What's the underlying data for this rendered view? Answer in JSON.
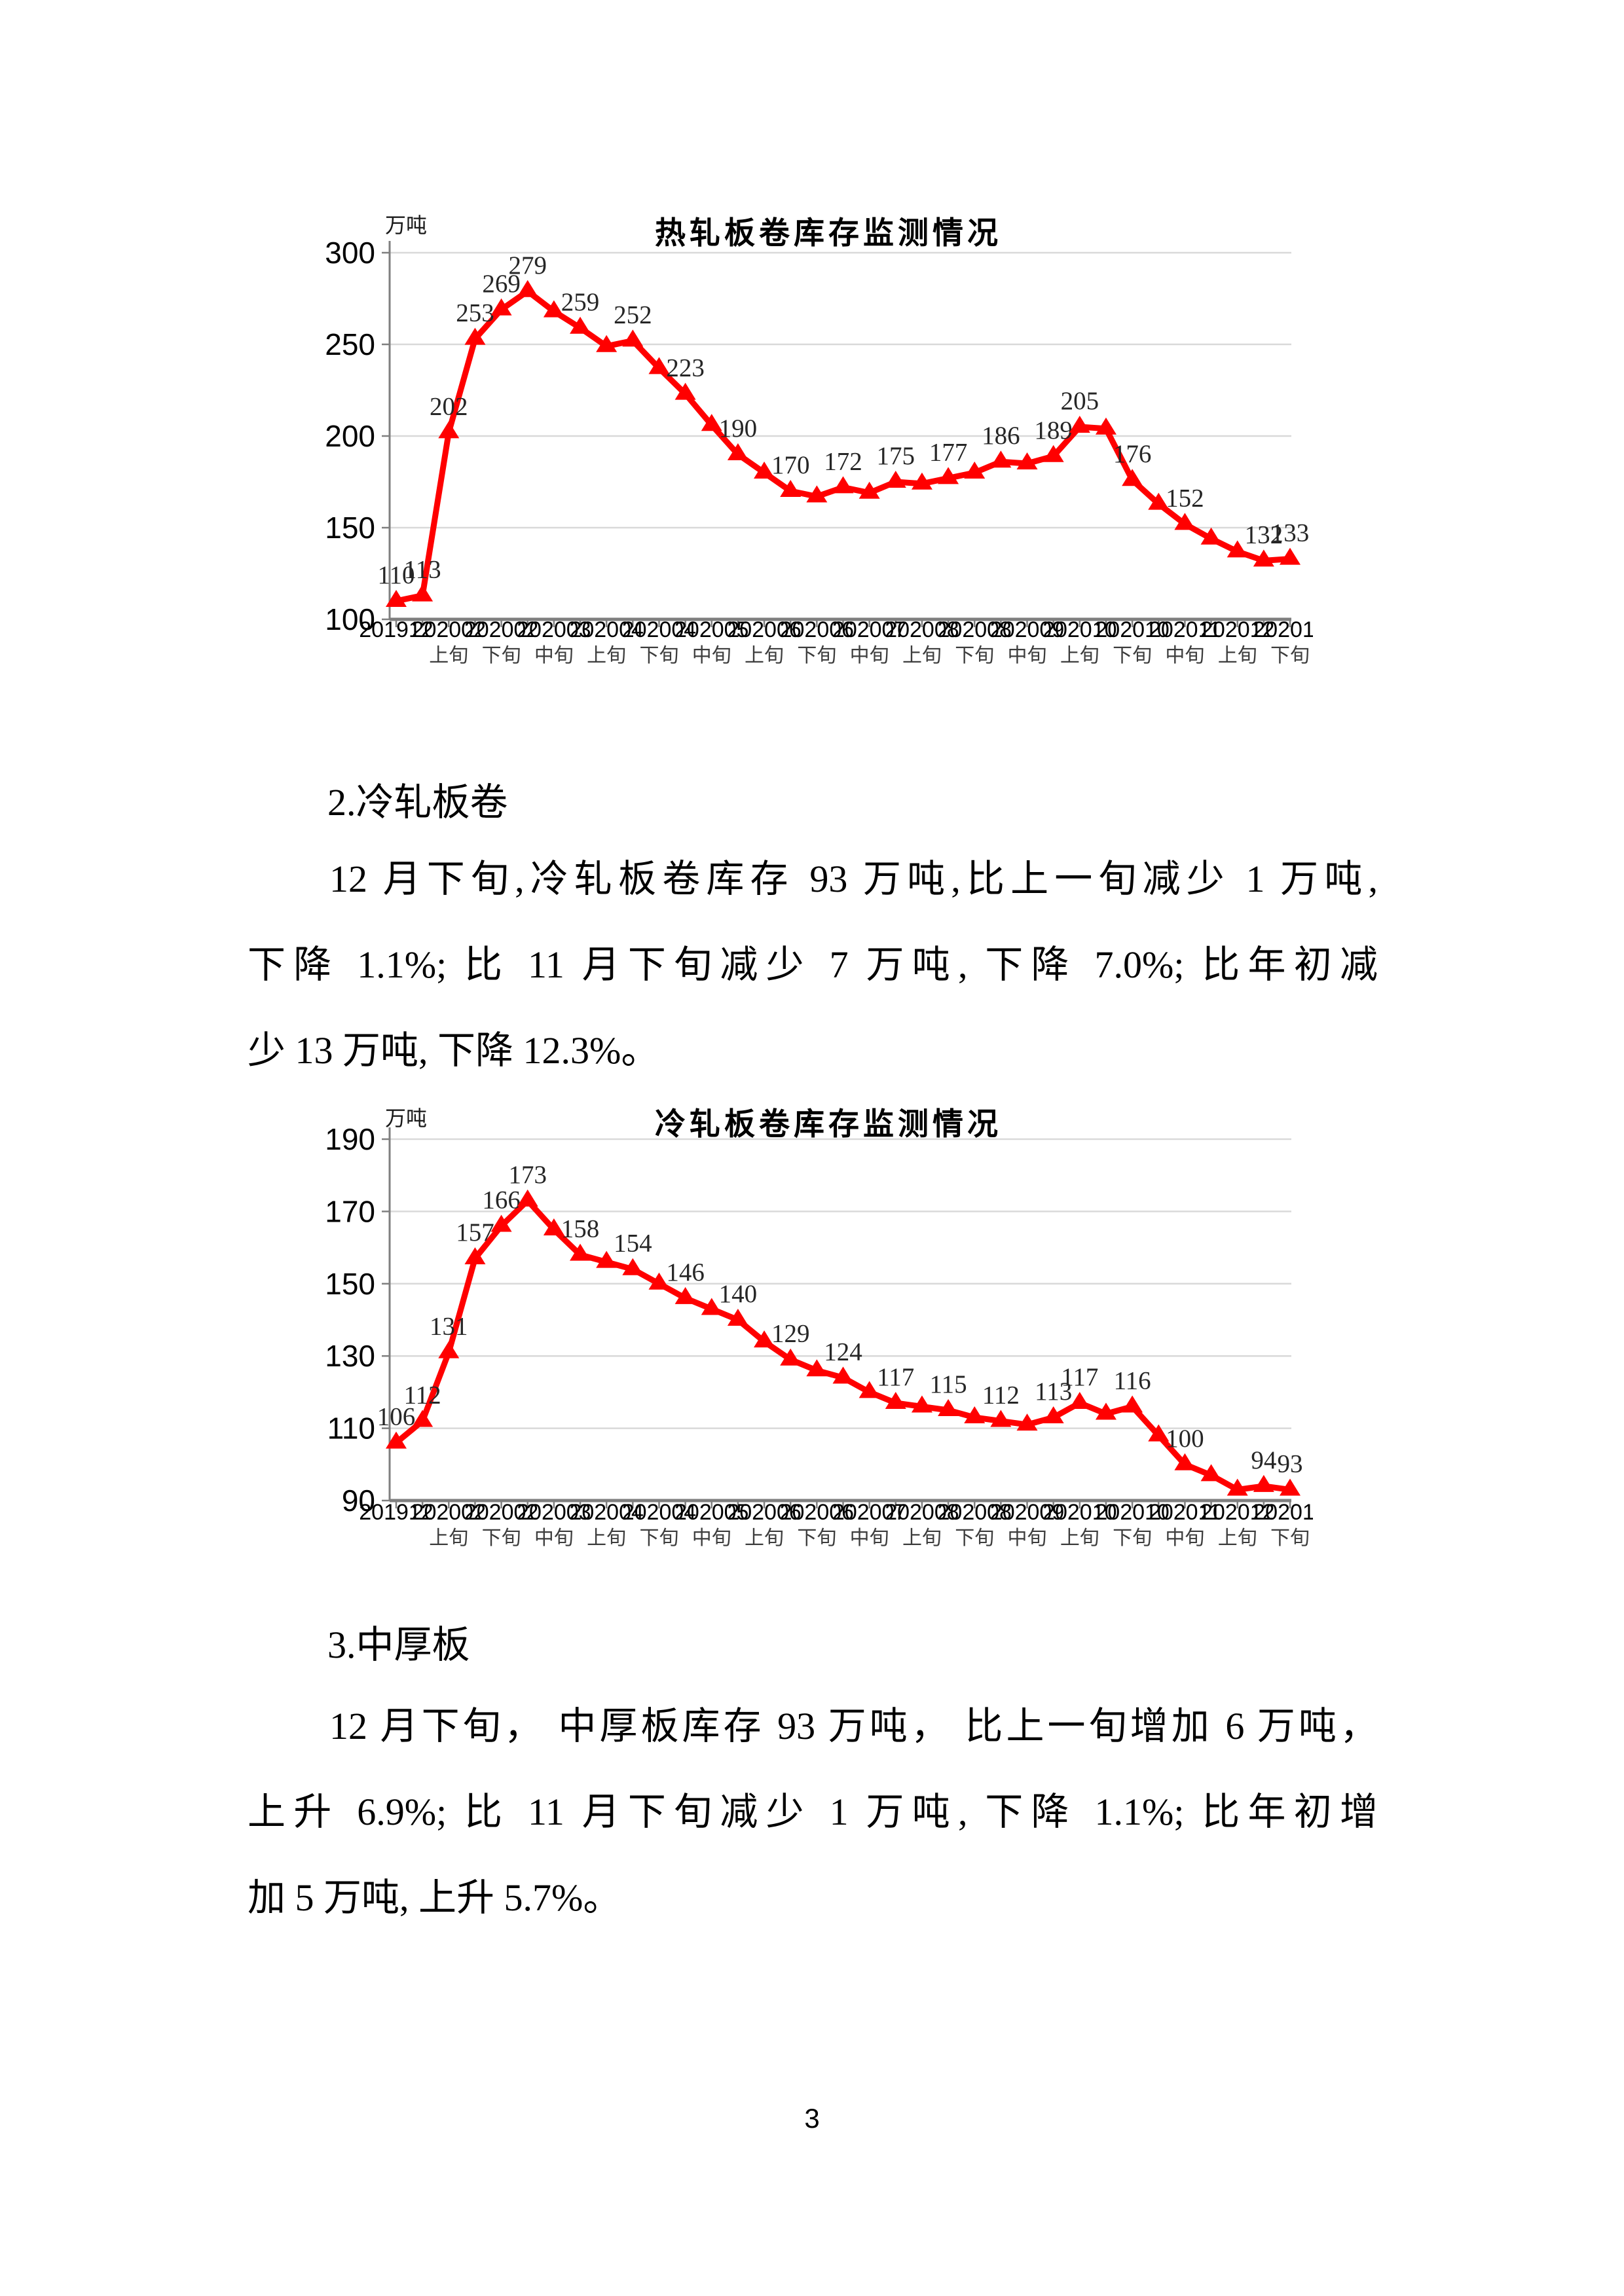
{
  "page": {
    "number": "3"
  },
  "colors": {
    "line_red": "#FF0000",
    "gridline": "#D9D9D9",
    "axis_gray": "#7F7F7F",
    "data_label": "#262626",
    "tick_label": "#000000",
    "sub_tick_label": "#3d3d3d"
  },
  "chart_data": [
    {
      "type": "line",
      "title": "热轧板卷库存监测情况",
      "unit_label": "万吨",
      "series_name": "热轧板卷库存",
      "ylim": [
        100,
        300
      ],
      "y_ticks": [
        300,
        250,
        200,
        150,
        100
      ],
      "grid": "horizontal",
      "legend": "none",
      "x_tick_labels": [
        [
          "201912",
          ""
        ],
        [
          "202002",
          "上旬"
        ],
        [
          "202002",
          "下旬"
        ],
        [
          "202003",
          "中旬"
        ],
        [
          "202004",
          "上旬"
        ],
        [
          "202004",
          "下旬"
        ],
        [
          "202005",
          "中旬"
        ],
        [
          "202006",
          "上旬"
        ],
        [
          "202006",
          "下旬"
        ],
        [
          "202007",
          "中旬"
        ],
        [
          "202008",
          "上旬"
        ],
        [
          "202008",
          "下旬"
        ],
        [
          "202009",
          "中旬"
        ],
        [
          "202010",
          "上旬"
        ],
        [
          "202010",
          "下旬"
        ],
        [
          "202011",
          "中旬"
        ],
        [
          "202012",
          "上旬"
        ],
        [
          "202012",
          "下旬"
        ]
      ],
      "points": [
        {
          "v": 110,
          "label": "110"
        },
        {
          "v": 113,
          "label": "113"
        },
        {
          "v": 202,
          "label": "202"
        },
        {
          "v": 253,
          "label": "253"
        },
        {
          "v": 269,
          "label": "269"
        },
        {
          "v": 279,
          "label": "279"
        },
        {
          "v": 268,
          "label": null
        },
        {
          "v": 259,
          "label": "259"
        },
        {
          "v": 249,
          "label": null
        },
        {
          "v": 252,
          "label": "252"
        },
        {
          "v": 237,
          "label": null
        },
        {
          "v": 223,
          "label": "223"
        },
        {
          "v": 206,
          "label": null
        },
        {
          "v": 190,
          "label": "190"
        },
        {
          "v": 180,
          "label": null
        },
        {
          "v": 170,
          "label": "170"
        },
        {
          "v": 167,
          "label": null
        },
        {
          "v": 172,
          "label": "172"
        },
        {
          "v": 169,
          "label": null
        },
        {
          "v": 175,
          "label": "175"
        },
        {
          "v": 174,
          "label": null
        },
        {
          "v": 177,
          "label": "177"
        },
        {
          "v": 180,
          "label": null
        },
        {
          "v": 186,
          "label": "186"
        },
        {
          "v": 185,
          "label": null
        },
        {
          "v": 189,
          "label": "189"
        },
        {
          "v": 205,
          "label": "205"
        },
        {
          "v": 204,
          "label": null
        },
        {
          "v": 176,
          "label": "176"
        },
        {
          "v": 163,
          "label": null
        },
        {
          "v": 152,
          "label": "152"
        },
        {
          "v": 144,
          "label": null
        },
        {
          "v": 137,
          "label": null
        },
        {
          "v": 132,
          "label": "132"
        },
        {
          "v": 133,
          "label": "133"
        }
      ]
    },
    {
      "type": "line",
      "title": "冷轧板卷库存监测情况",
      "unit_label": "万吨",
      "series_name": "冷轧板卷库存",
      "ylim": [
        90,
        190
      ],
      "y_ticks": [
        190,
        170,
        150,
        130,
        110,
        90
      ],
      "grid": "horizontal",
      "legend": "none",
      "x_tick_labels": [
        [
          "201912",
          ""
        ],
        [
          "202002",
          "上旬"
        ],
        [
          "202002",
          "下旬"
        ],
        [
          "202003",
          "中旬"
        ],
        [
          "202004",
          "上旬"
        ],
        [
          "202004",
          "下旬"
        ],
        [
          "202005",
          "中旬"
        ],
        [
          "202006",
          "上旬"
        ],
        [
          "202006",
          "下旬"
        ],
        [
          "202007",
          "中旬"
        ],
        [
          "202008",
          "上旬"
        ],
        [
          "202008",
          "下旬"
        ],
        [
          "202009",
          "中旬"
        ],
        [
          "202010",
          "上旬"
        ],
        [
          "202010",
          "下旬"
        ],
        [
          "202011",
          "中旬"
        ],
        [
          "202012",
          "上旬"
        ],
        [
          "202012",
          "下旬"
        ]
      ],
      "points": [
        {
          "v": 106,
          "label": "106"
        },
        {
          "v": 112,
          "label": "112"
        },
        {
          "v": 131,
          "label": "131"
        },
        {
          "v": 157,
          "label": "157"
        },
        {
          "v": 166,
          "label": "166"
        },
        {
          "v": 173,
          "label": "173"
        },
        {
          "v": 165,
          "label": null
        },
        {
          "v": 158,
          "label": "158"
        },
        {
          "v": 156,
          "label": null
        },
        {
          "v": 154,
          "label": "154"
        },
        {
          "v": 150,
          "label": null
        },
        {
          "v": 146,
          "label": "146"
        },
        {
          "v": 143,
          "label": null
        },
        {
          "v": 140,
          "label": "140"
        },
        {
          "v": 134,
          "label": null
        },
        {
          "v": 129,
          "label": "129"
        },
        {
          "v": 126,
          "label": null
        },
        {
          "v": 124,
          "label": "124"
        },
        {
          "v": 120,
          "label": null
        },
        {
          "v": 117,
          "label": "117"
        },
        {
          "v": 116,
          "label": null
        },
        {
          "v": 115,
          "label": "115"
        },
        {
          "v": 113,
          "label": null
        },
        {
          "v": 112,
          "label": "112"
        },
        {
          "v": 111,
          "label": null
        },
        {
          "v": 113,
          "label": "113"
        },
        {
          "v": 117,
          "label": "117"
        },
        {
          "v": 114,
          "label": null
        },
        {
          "v": 116,
          "label": "116"
        },
        {
          "v": 108,
          "label": null
        },
        {
          "v": 100,
          "label": "100"
        },
        {
          "v": 97,
          "label": null
        },
        {
          "v": 93,
          "label": null
        },
        {
          "v": 94,
          "label": "94"
        },
        {
          "v": 93,
          "label": "93"
        }
      ]
    }
  ],
  "sections": [
    {
      "heading": "2.冷轧板卷",
      "lines": [
        "12 月下旬,冷轧板卷库存 93 万吨,比上一旬减少 1 万吨,",
        "下降 1.1%; 比 11 月下旬减少 7 万吨, 下降 7.0%; 比年初减",
        "少 13 万吨, 下降 12.3%。"
      ]
    },
    {
      "heading": "3.中厚板",
      "lines": [
        "12 月下旬， 中厚板库存 93 万吨， 比上一旬增加 6 万吨，",
        "上升 6.9%; 比 11 月下旬减少 1 万吨, 下降 1.1%; 比年初增",
        "加 5 万吨, 上升 5.7%。"
      ]
    }
  ]
}
